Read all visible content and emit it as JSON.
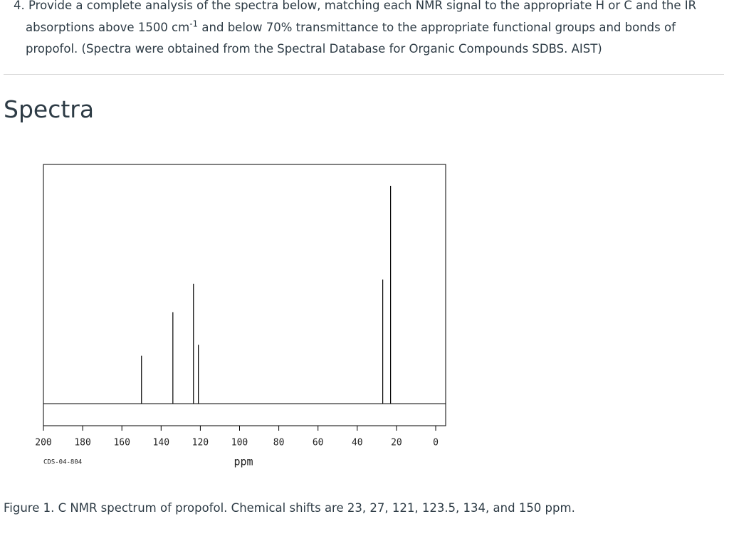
{
  "question": {
    "text_before": "4. Provide a complete analysis of the spectra below, matching each NMR signal to the appropriate H or C and the IR absorptions above 1500 cm",
    "superscript": "-1",
    "text_after": " and below 70% transmittance to the appropriate functional groups and bonds of propofol. (Spectra were obtained from the Spectral Database for Organic Compounds SDBS. AIST)"
  },
  "heading": "Spectra",
  "chart_data": {
    "type": "stick",
    "x": [
      150,
      134,
      123.5,
      121,
      27,
      23
    ],
    "values": [
      22,
      42,
      55,
      27,
      57,
      100
    ],
    "color": "#000000",
    "xlim": [
      200,
      0
    ],
    "xticks": [
      200,
      180,
      160,
      140,
      120,
      100,
      80,
      60,
      40,
      20,
      0
    ],
    "x_label": "ppm",
    "code": "CDS-04-804"
  },
  "caption": "Figure 1. C NMR spectrum of propofol. Chemical shifts are 23, 27, 121, 123.5, 134, and 150 ppm."
}
